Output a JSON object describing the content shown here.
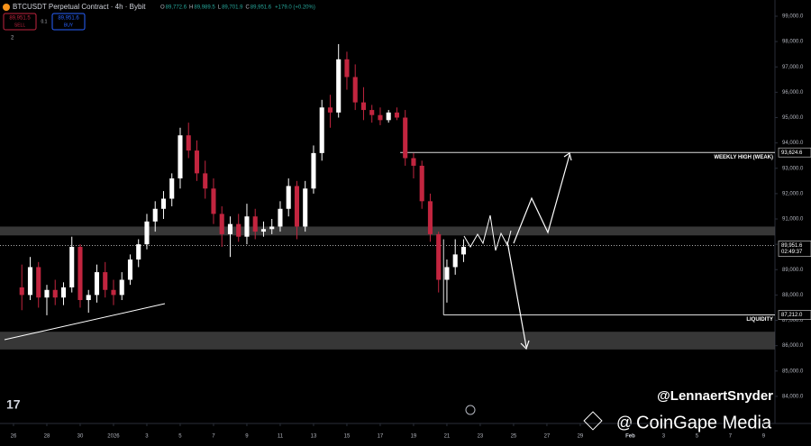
{
  "chart_data": {
    "type": "candlestick",
    "title": "BTCUSDT Perpetual Contract · 4h · Bybit",
    "ohlc_text": [
      {
        "k": "O",
        "v": "89,772.6"
      },
      {
        "k": "H",
        "v": "89,989.5"
      },
      {
        "k": "L",
        "v": "89,701.9"
      },
      {
        "k": "C",
        "v": "89,951.6"
      },
      {
        "k": "",
        "v": "+179.0 (+0.20%)"
      }
    ],
    "trade": {
      "sell_price": "89,951.5",
      "sell": "SELL",
      "spread": "0.1",
      "buy_price": "89,951.6",
      "buy": "BUY",
      "count": "2"
    },
    "x": [
      0.5,
      1,
      1.5,
      2,
      2.5,
      3,
      3.5,
      4,
      4.5,
      5,
      5.5,
      6,
      6.5,
      7,
      7.5,
      8,
      8.5,
      9,
      9.5,
      10,
      10.5,
      11,
      11.5,
      12,
      12.5,
      13,
      13.5,
      14,
      14.5,
      15,
      15.5,
      16,
      16.5,
      17,
      17.5,
      18,
      18.5,
      19,
      19.5,
      20,
      20.5,
      21,
      21.5,
      22,
      22.5,
      23,
      23.5,
      24,
      24.5,
      25,
      25.5,
      26,
      26.5,
      27
    ],
    "open": [
      88300,
      88000,
      89100,
      87900,
      88200,
      87900,
      88300,
      89900,
      87800,
      88000,
      88900,
      88200,
      88000,
      88600,
      89400,
      90000,
      90900,
      91400,
      91800,
      92600,
      94300,
      93700,
      92800,
      92200,
      91200,
      90400,
      90800,
      90300,
      91100,
      90500,
      90600,
      90700,
      91400,
      92300,
      90700,
      92200,
      93600,
      95400,
      95200,
      97300,
      96600,
      95600,
      95300,
      95100,
      94900,
      95200,
      95000,
      93400,
      93100,
      91700,
      90400,
      88600,
      89100,
      89600
    ],
    "high": [
      89200,
      89500,
      89300,
      88400,
      88600,
      88500,
      90300,
      90000,
      88200,
      89200,
      89300,
      88600,
      88900,
      89600,
      90200,
      91200,
      91700,
      92100,
      92800,
      94600,
      94800,
      94100,
      93300,
      92600,
      91500,
      91100,
      91200,
      91600,
      91400,
      90900,
      91000,
      91700,
      92600,
      92500,
      92500,
      93900,
      95700,
      95900,
      97900,
      97600,
      97100,
      96200,
      95500,
      95400,
      95300,
      95400,
      95300,
      93600,
      93300,
      92000,
      90500,
      89400,
      90200,
      90200
    ],
    "low": [
      87400,
      87800,
      87500,
      87200,
      87600,
      87600,
      88100,
      87500,
      87300,
      87700,
      87900,
      87600,
      87800,
      88400,
      89100,
      89800,
      90500,
      91000,
      91500,
      92200,
      93400,
      92500,
      91800,
      90800,
      89900,
      89500,
      90100,
      90000,
      90200,
      90300,
      90400,
      90500,
      91100,
      90200,
      90500,
      92000,
      93300,
      94600,
      95000,
      96100,
      95300,
      94900,
      94800,
      94700,
      94800,
      94900,
      93100,
      92600,
      91400,
      90100,
      88100,
      87700,
      88800,
      89300
    ],
    "close": [
      88000,
      89100,
      87900,
      88200,
      87900,
      88300,
      89900,
      87800,
      88000,
      88900,
      88200,
      88000,
      88600,
      89400,
      90000,
      90900,
      91400,
      91800,
      92600,
      94300,
      93700,
      92800,
      92200,
      91200,
      90400,
      90800,
      90300,
      91100,
      90500,
      90600,
      90700,
      91400,
      92300,
      90700,
      92200,
      93600,
      95400,
      95200,
      97300,
      96600,
      95600,
      95300,
      95100,
      94900,
      95200,
      95000,
      93400,
      93100,
      91700,
      90400,
      88600,
      89100,
      89600,
      89900
    ],
    "up_color": "#ffffff",
    "down_color": "#c2253f",
    "ylim": [
      82930,
      99640
    ],
    "yticks": [
      {
        "value": 84000,
        "label": "84,000.0"
      },
      {
        "value": 85000,
        "label": "85,000.0"
      },
      {
        "value": 86000,
        "label": "86,000.0"
      },
      {
        "value": 87000,
        "label": "87,000.0"
      },
      {
        "value": 88000,
        "label": "88,000.0"
      },
      {
        "value": 89000,
        "label": "89,000.0"
      },
      {
        "value": 90000,
        "label": "90,000.0"
      },
      {
        "value": 91000,
        "label": "91,000.0"
      },
      {
        "value": 92000,
        "label": "92,000.0"
      },
      {
        "value": 93000,
        "label": "93,000.0"
      },
      {
        "value": 94000,
        "label": "94,000.0"
      },
      {
        "value": 95000,
        "label": "95,000.0"
      },
      {
        "value": 96000,
        "label": "96,000.0"
      },
      {
        "value": 97000,
        "label": "97,000.0"
      },
      {
        "value": 98000,
        "label": "98,000.0"
      },
      {
        "value": 99000,
        "label": "99,000.0"
      }
    ],
    "xlim": [
      -0.81,
      45.68
    ],
    "xticks": [
      {
        "value": 0,
        "label": "26"
      },
      {
        "value": 2,
        "label": "28"
      },
      {
        "value": 4,
        "label": "30"
      },
      {
        "value": 6,
        "label": "2026"
      },
      {
        "value": 8,
        "label": "3"
      },
      {
        "value": 10,
        "label": "5"
      },
      {
        "value": 12,
        "label": "7"
      },
      {
        "value": 14,
        "label": "9"
      },
      {
        "value": 16,
        "label": "11"
      },
      {
        "value": 18,
        "label": "13"
      },
      {
        "value": 20,
        "label": "15"
      },
      {
        "value": 22,
        "label": "17"
      },
      {
        "value": 24,
        "label": "19"
      },
      {
        "value": 26,
        "label": "21"
      },
      {
        "value": 28,
        "label": "23"
      },
      {
        "value": 30,
        "label": "25"
      },
      {
        "value": 32,
        "label": "27"
      },
      {
        "value": 34,
        "label": "29"
      },
      {
        "value": 37,
        "label": "Feb"
      },
      {
        "value": 39,
        "label": "3"
      },
      {
        "value": 41,
        "label": "5"
      },
      {
        "value": 43,
        "label": "7"
      },
      {
        "value": 45,
        "label": "9"
      }
    ],
    "zones": [
      [
        90350,
        90700
      ],
      [
        85850,
        86550
      ]
    ],
    "levels": [
      {
        "value": 93624.6,
        "label": "93,624.6",
        "name": "WEEKLY HIGH (WEAK)"
      },
      {
        "value": 87212,
        "label": "87,212.0",
        "name": "LIQUIDITY"
      }
    ],
    "last_price": {
      "value": 89951.6,
      "label": "89,951.6",
      "countdown": "02:49:37"
    },
    "watermark": {
      "author": "@LennaertSnyder",
      "brand": "CoinGape Media"
    }
  }
}
